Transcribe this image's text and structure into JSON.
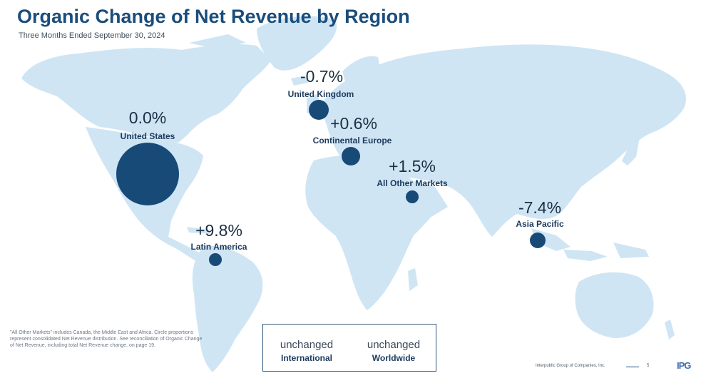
{
  "header": {
    "title": "Organic Change of Net Revenue by Region",
    "subtitle": "Three Months Ended September 30, 2024"
  },
  "regions": [
    {
      "name": "United States",
      "change": "0.0%"
    },
    {
      "name": "Latin America",
      "change": "+9.8%"
    },
    {
      "name": "United Kingdom",
      "change": "-0.7%"
    },
    {
      "name": "Continental Europe",
      "change": "+0.6%"
    },
    {
      "name": "All Other Markets",
      "change": "+1.5%"
    },
    {
      "name": "Asia Pacific",
      "change": "-7.4%"
    }
  ],
  "footnote": "\"All Other Markets\" includes Canada, the Middle East and Africa. Circle proportions represent consolidated Net Revenue distribution. See reconciliation of Organic Change of Net Revenue, including total Net Revenue change, on page 19.",
  "summary": {
    "international": {
      "value": "unchanged",
      "label": "International"
    },
    "worldwide": {
      "value": "unchanged",
      "label": "Worldwide"
    }
  },
  "footer": {
    "company": "Interpublic Group of Companies, Inc.",
    "page": "5",
    "logo": "IPG"
  },
  "colors": {
    "land": "#cfe5f4",
    "circle": "#184a78",
    "title": "#1a4d7c"
  }
}
